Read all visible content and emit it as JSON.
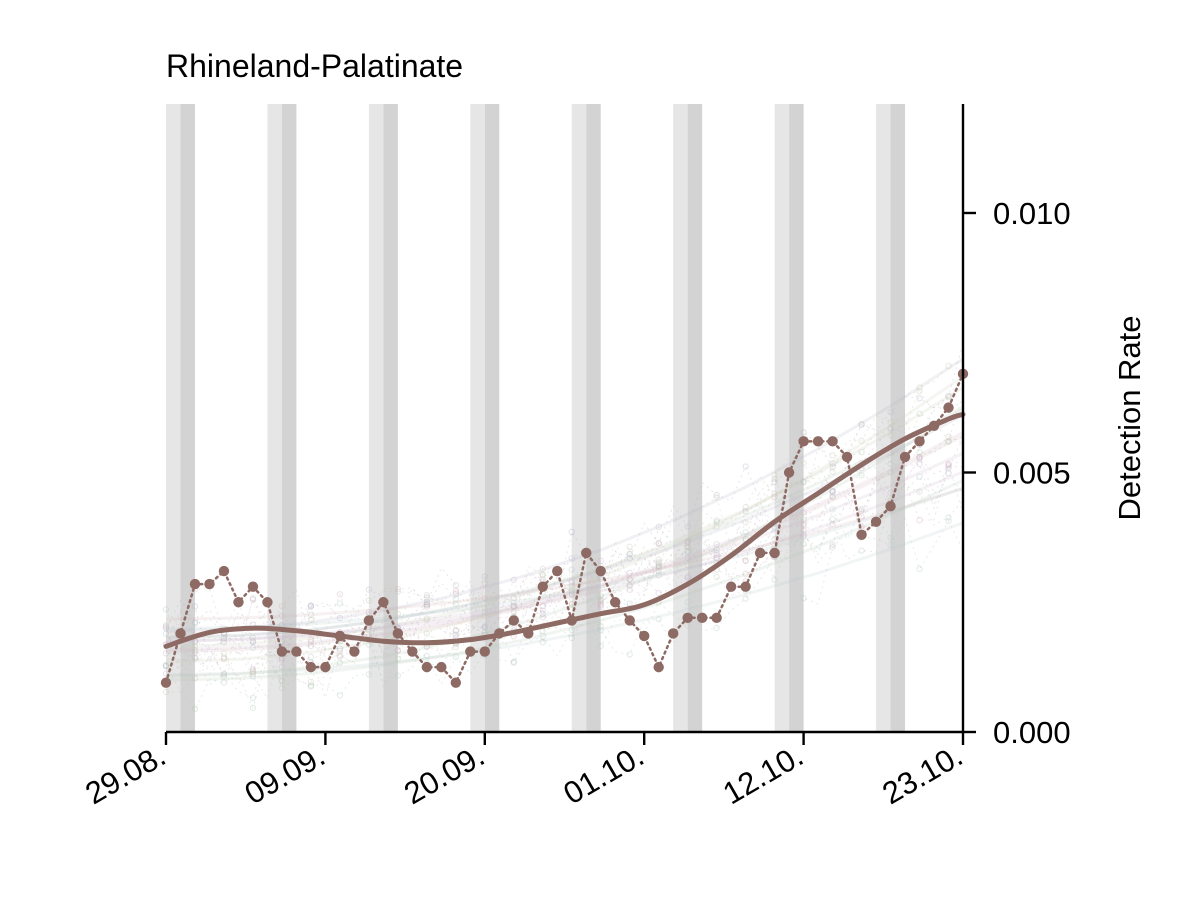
{
  "chart_data": {
    "type": "line",
    "title": "Rhineland-Palatinate",
    "xlabel": "",
    "ylabel": "Detection Rate",
    "x_range": [
      "29.08.",
      "23.10."
    ],
    "x_ticks": [
      "29.08.",
      "09.09.",
      "20.09.",
      "01.10.",
      "12.10.",
      "23.10."
    ],
    "y_ticks": [
      "0.000",
      "0.005",
      "0.010"
    ],
    "ylim": [
      0,
      0.0121
    ],
    "y_axis_side": "right",
    "grid": false,
    "legend": "none",
    "weekend_bands_start_day": [
      0,
      7,
      14,
      21,
      28,
      35,
      42,
      49
    ],
    "series": [
      {
        "color": "#8d6a63",
        "style": "dotted-with-markers",
        "x_day": [
          0,
          1,
          2,
          3,
          4,
          5,
          6,
          7,
          8,
          9,
          10,
          11,
          12,
          13,
          14,
          15,
          16,
          17,
          18,
          19,
          20,
          21,
          22,
          23,
          24,
          25,
          26,
          27,
          28,
          29,
          30,
          31,
          32,
          33,
          34,
          35,
          36,
          37,
          38,
          39,
          40,
          41,
          42,
          43,
          44,
          45,
          46,
          47,
          48,
          49,
          50,
          51,
          52,
          53,
          54,
          55
        ],
        "values": [
          0.00095,
          0.0019,
          0.00285,
          0.00285,
          0.0031,
          0.0025,
          0.0028,
          0.0025,
          0.00155,
          0.00155,
          0.00125,
          0.00125,
          0.00185,
          0.00155,
          0.00215,
          0.0025,
          0.0019,
          0.00155,
          0.00125,
          0.00125,
          0.00095,
          0.00155,
          0.00155,
          0.0019,
          0.00215,
          0.0019,
          0.0028,
          0.0031,
          0.00215,
          0.00345,
          0.0031,
          0.0025,
          0.00215,
          0.00185,
          0.00125,
          0.0019,
          0.0022,
          0.0022,
          0.0022,
          0.0028,
          0.0028,
          0.00345,
          0.00345,
          0.005,
          0.0056,
          0.0056,
          0.0056,
          0.0053,
          0.0038,
          0.00405,
          0.00435,
          0.0053,
          0.0056,
          0.0059,
          0.00625,
          0.0069
        ]
      },
      {
        "color": "#8d6a63",
        "style": "smooth-trend",
        "x_day": [
          0,
          3,
          6,
          9,
          12,
          15,
          18,
          21,
          24,
          27,
          30,
          33,
          36,
          39,
          42,
          45,
          48,
          51,
          54,
          55
        ],
        "values": [
          0.00165,
          0.00192,
          0.002,
          0.00195,
          0.00185,
          0.00175,
          0.00172,
          0.00178,
          0.00192,
          0.0021,
          0.00228,
          0.00245,
          0.00285,
          0.0034,
          0.00405,
          0.0046,
          0.00515,
          0.00565,
          0.00603,
          0.00612
        ]
      }
    ]
  }
}
